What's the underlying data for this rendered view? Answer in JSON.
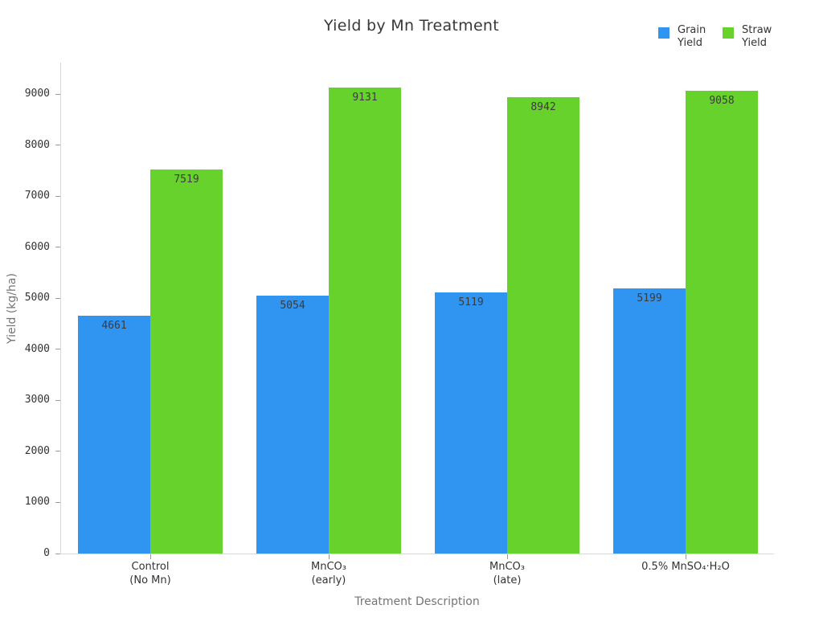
{
  "chart_data": {
    "type": "bar",
    "title": "Yield by Mn Treatment",
    "xlabel": "Treatment Description",
    "ylabel": "Yield (kg/ha)",
    "categories": [
      "Control\n(No Mn)",
      "MnCO₃\n(early)",
      "MnCO₃\n(late)",
      "0.5% MnSO₄·H₂O"
    ],
    "series": [
      {
        "name": "Grain Yield",
        "color": "#3094f1",
        "values": [
          4661,
          5054,
          5119,
          5199
        ]
      },
      {
        "name": "Straw Yield",
        "color": "#67d22c",
        "values": [
          7519,
          9131,
          8942,
          9058
        ]
      }
    ],
    "yticks": [
      0,
      1000,
      2000,
      3000,
      4000,
      5000,
      6000,
      7000,
      8000,
      9000
    ],
    "ylim": [
      0,
      9630
    ],
    "grid": false,
    "legend_position": "top-right",
    "bar_value_labels": true,
    "colors": {
      "grain": "#3094f1",
      "straw": "#67d22c",
      "axis_line": "#d8d8d8",
      "tick_mark": "#9a9a9a",
      "tick_text": "#333333",
      "axis_title_text": "#757575",
      "title_text": "#383838",
      "background": "#ffffff"
    }
  }
}
